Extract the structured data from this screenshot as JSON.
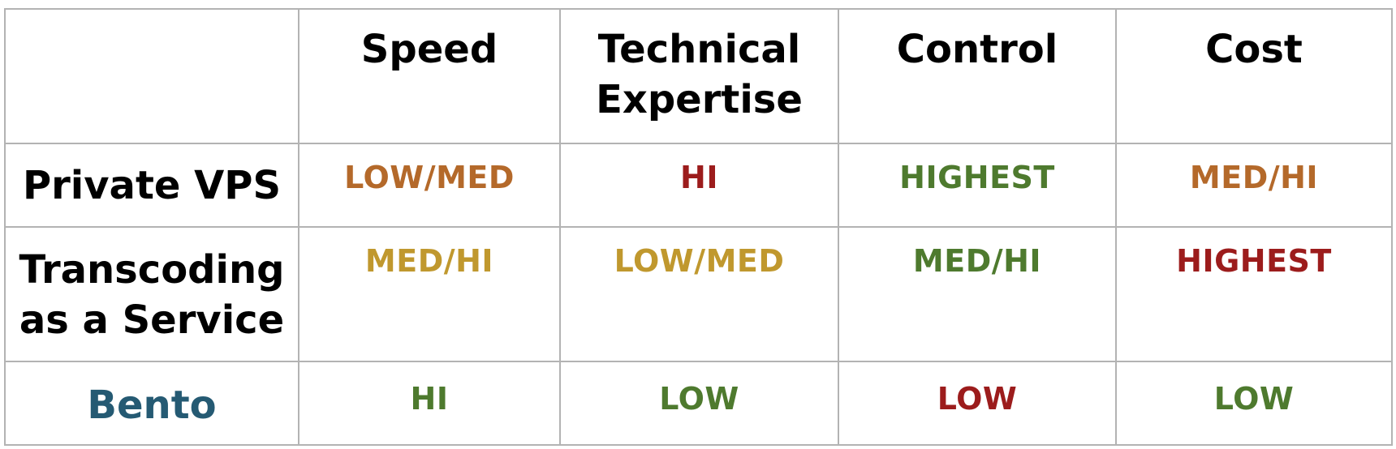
{
  "columns": [
    "Speed",
    [
      "Technical",
      "Expertise"
    ],
    "Control",
    "Cost"
  ],
  "rows": [
    {
      "label": [
        "Private VPS"
      ],
      "label_color": "#000000",
      "cells": [
        {
          "text": "LOW/MED",
          "color": "#b4692a"
        },
        {
          "text": "HI",
          "color": "#9c1c1c"
        },
        {
          "text": "HIGHEST",
          "color": "#4e7a2e"
        },
        {
          "text": "MED/HI",
          "color": "#b4692a"
        }
      ]
    },
    {
      "label": [
        "Transcoding",
        "as a Service"
      ],
      "label_color": "#000000",
      "cells": [
        {
          "text": "MED/HI",
          "color": "#c0982e"
        },
        {
          "text": "LOW/MED",
          "color": "#c0982e"
        },
        {
          "text": "MED/HI",
          "color": "#4e7a2e"
        },
        {
          "text": "HIGHEST",
          "color": "#9c1c1c"
        }
      ]
    },
    {
      "label": [
        "Bento"
      ],
      "label_color": "#255a73",
      "cells": [
        {
          "text": "HI",
          "color": "#4e7a2e"
        },
        {
          "text": "LOW",
          "color": "#4e7a2e"
        },
        {
          "text": "LOW",
          "color": "#9c1c1c"
        },
        {
          "text": "LOW",
          "color": "#4e7a2e"
        }
      ]
    }
  ]
}
